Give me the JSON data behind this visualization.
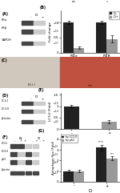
{
  "panel_B": {
    "groups": [
      "ERα",
      "ERβ"
    ],
    "bar1_vals": [
      1.0,
      1.0
    ],
    "bar2_vals": [
      0.15,
      0.45
    ],
    "bar1_err": [
      0.05,
      0.05
    ],
    "bar2_err": [
      0.04,
      0.12
    ],
    "bar1_color": "#222222",
    "bar2_color": "#999999",
    "legend": [
      "Di-",
      "Di+"
    ],
    "ylabel": "Fold change",
    "ylim": [
      0,
      1.4
    ],
    "yticks": [
      0.0,
      0.5,
      1.0
    ],
    "sig1": "ns",
    "sig2": "*"
  },
  "panel_E": {
    "groups": [
      "-",
      "+"
    ],
    "bar_vals": [
      1.0,
      0.32
    ],
    "bar_err": [
      0.05,
      0.08
    ],
    "bar_color": [
      "#222222",
      "#999999"
    ],
    "ylabel": "LC3-II (Fold)",
    "xlabel": "Di",
    "ylim": [
      0,
      1.6
    ],
    "yticks": [
      0.0,
      0.5,
      1.0,
      1.5
    ],
    "sig": "***"
  },
  "panel_G": {
    "groups": [
      "-",
      "+"
    ],
    "bar1_vals": [
      1.0,
      3.2
    ],
    "bar2_vals": [
      1.0,
      2.2
    ],
    "bar1_err": [
      0.12,
      0.28
    ],
    "bar2_err": [
      0.12,
      0.22
    ],
    "bar1_color": "#222222",
    "bar2_color": "#999999",
    "legend": [
      "by LC3-II",
      "by p62"
    ],
    "ylabel": "Autophagy flux (Fold)",
    "xlabel": "Di",
    "ylim": [
      0,
      4.5
    ],
    "yticks": [
      0,
      1,
      2,
      3,
      4
    ],
    "sig1": "****",
    "sig2": "***"
  },
  "panel_A": {
    "label": "(A)",
    "col_header": "Di",
    "cols": [
      "-",
      "+"
    ],
    "rows": [
      "ERα",
      "ERβ",
      "GAPDH"
    ],
    "kda": [
      "←67",
      "←55",
      "←37"
    ],
    "band_dark": "#444444",
    "band_light": "#cccccc",
    "bg": "#c8c8c8"
  },
  "panel_D": {
    "label": "(D)",
    "col_header": "Di",
    "cols": [
      "-",
      "+"
    ],
    "rows": [
      "LC3-I",
      "LC3-II",
      "β-actin"
    ],
    "kda": [
      "←16",
      "←14",
      "←42"
    ],
    "band_dark": "#444444",
    "band_light": "#cccccc",
    "bg": "#c8c8c8"
  },
  "panel_F": {
    "label": "(F)",
    "col_header": "Di",
    "bl_header": "BL",
    "cols": [
      "-",
      "+",
      "-",
      "+"
    ],
    "rows": [
      "LC3-I",
      "LC3-II",
      "p62",
      "β-actin"
    ],
    "kda": [
      "←16",
      "←14",
      "←62",
      "←42"
    ],
    "band_dark": "#444444",
    "band_light": "#cccccc",
    "bg": "#c8c8c8"
  },
  "panel_C": {
    "label": "(C)",
    "left_color": "#d0c8bc",
    "right_color": "#c05040",
    "caption": "Di (-)"
  },
  "background": "#ffffff"
}
